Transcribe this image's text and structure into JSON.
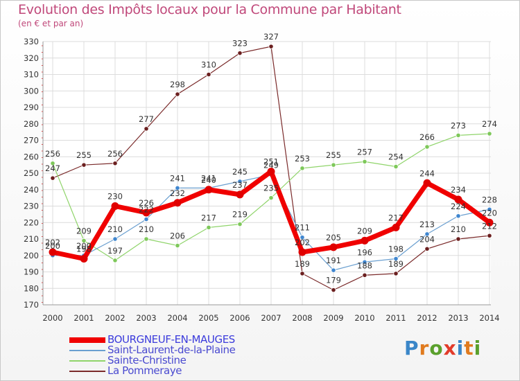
{
  "title": "Evolution des Impôts locaux pour la Commune par Habitant",
  "subtitle": "(en € et par an)",
  "logo": {
    "text": "Proxiti",
    "colors": [
      "#3a86c8",
      "#e07b1f",
      "#5aa02c",
      "#e23b2a",
      "#3a86c8",
      "#e07b1f",
      "#5aa02c"
    ]
  },
  "chart_data": {
    "type": "line",
    "title": "Evolution des Impôts locaux pour la Commune par Habitant",
    "subtitle": "(en € et par an)",
    "xlabel": "",
    "ylabel": "",
    "ylim": [
      170,
      330
    ],
    "yticks": [
      170,
      180,
      190,
      200,
      210,
      220,
      230,
      240,
      250,
      260,
      270,
      280,
      290,
      300,
      310,
      320,
      330
    ],
    "grid": true,
    "legend_position": "bottom-left",
    "categories": [
      "2000",
      "2001",
      "2002",
      "2003",
      "2004",
      "2005",
      "2006",
      "2007",
      "2008",
      "2009",
      "2010",
      "2011",
      "2012",
      "2013",
      "2014"
    ],
    "series": [
      {
        "name": "La Pommeraye",
        "color": "#7a2a2a",
        "marker": "#6b1f1f",
        "width": 1.2,
        "values": [
          247,
          255,
          256,
          277,
          298,
          310,
          323,
          327,
          189,
          179,
          188,
          189,
          204,
          210,
          212
        ]
      },
      {
        "name": "Sainte-Christine",
        "color": "#8fd46a",
        "marker": "#7ec85a",
        "width": 1.2,
        "values": [
          256,
          209,
          197,
          210,
          206,
          217,
          219,
          235,
          253,
          255,
          257,
          254,
          266,
          273,
          274
        ]
      },
      {
        "name": "Saint-Laurent-de-la-Plaine",
        "color": "#6a9fd0",
        "marker": "#3f86cf",
        "width": 1.2,
        "values": [
          200,
          200,
          210,
          222,
          241,
          241,
          245,
          249,
          211,
          191,
          196,
          198,
          213,
          224,
          228
        ]
      },
      {
        "name": "BOURGNEUF-EN-MAUGES",
        "color": "#f00000",
        "marker": "#e00000",
        "width": 7,
        "values": [
          202,
          198,
          230,
          226,
          232,
          240,
          237,
          251,
          202,
          205,
          209,
          217,
          244,
          234,
          220
        ]
      }
    ]
  },
  "legend": [
    {
      "label": "BOURGNEUF-EN-MAUGES",
      "color": "#f00000"
    },
    {
      "label": "Saint-Laurent-de-la-Plaine",
      "color": "#6a9fd0"
    },
    {
      "label": "Sainte-Christine",
      "color": "#8fd46a"
    },
    {
      "label": "La Pommeraye",
      "color": "#7a2a2a"
    }
  ]
}
